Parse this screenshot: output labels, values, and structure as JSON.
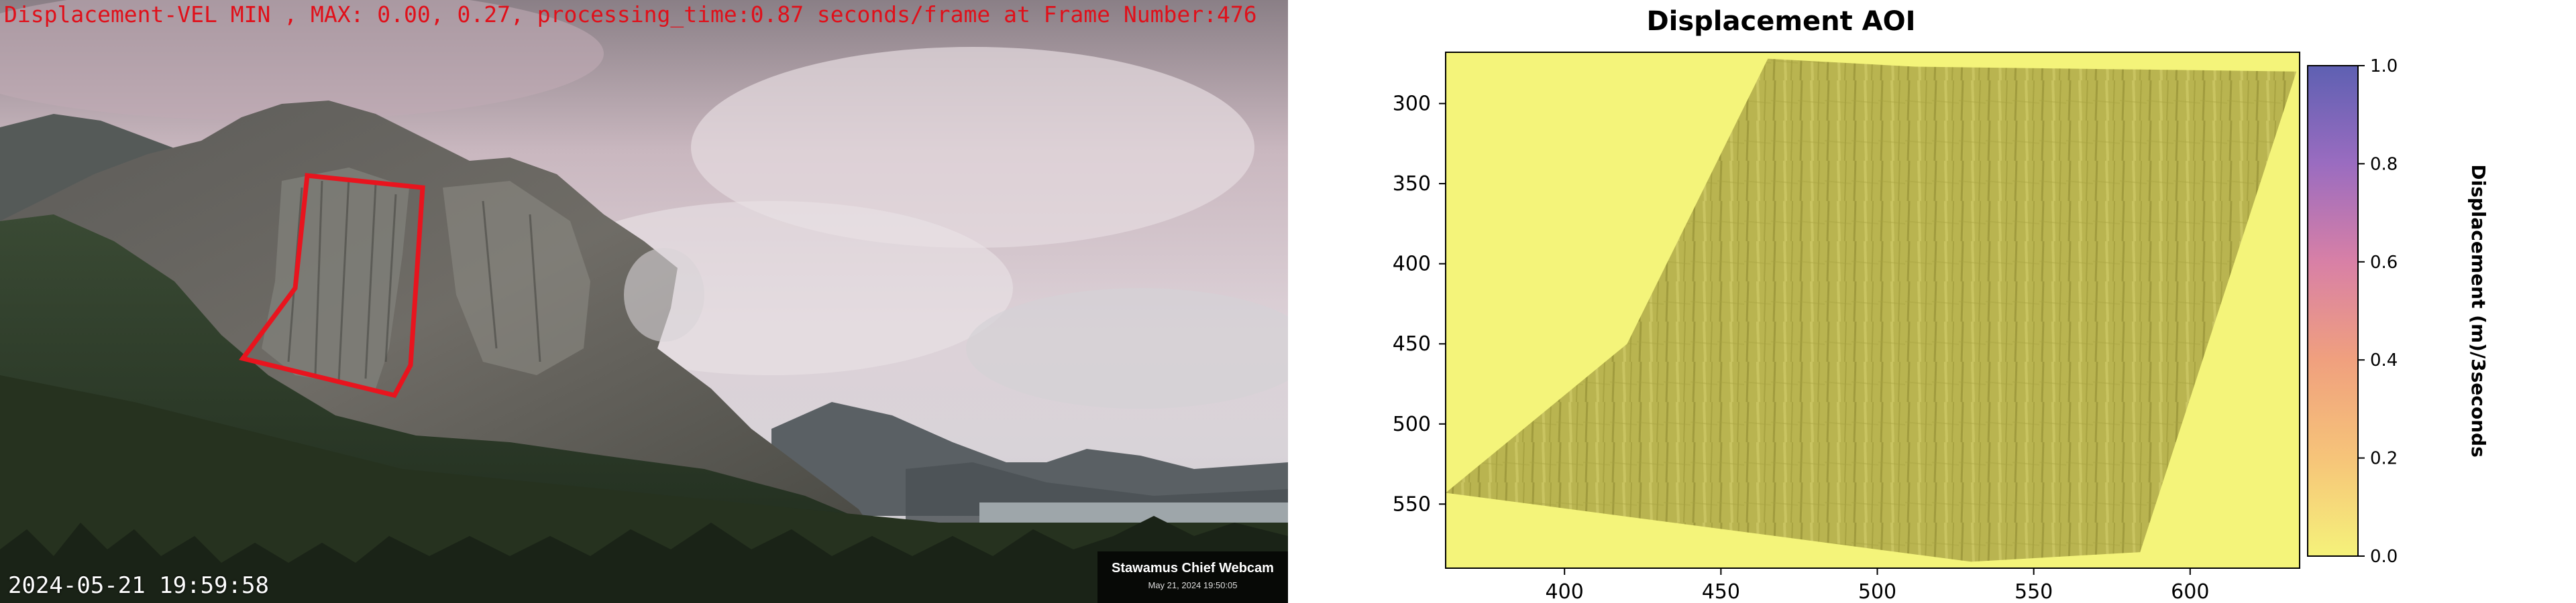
{
  "webcam": {
    "overlay_text": "Displacement-VEL MIN , MAX: 0.00, 0.27, processing_time:0.87 seconds/frame at Frame Number:476",
    "timestamp": "2024-05-21 19:59:58",
    "badge_title": "Stawamus Chief Webcam",
    "badge_subtitle": "May 21, 2024 19:50:05",
    "aoi_color": "#e8141e"
  },
  "chart_data": {
    "type": "heatmap",
    "title": "Displacement AOI",
    "xlabel": "",
    "ylabel": "",
    "xlim": [
      362,
      635
    ],
    "ylim": [
      590,
      268
    ],
    "xticks": [
      400,
      450,
      500,
      550,
      600
    ],
    "yticks": [
      300,
      350,
      400,
      450,
      500,
      550
    ],
    "colorbar": {
      "label": "Displacement (m)/3seconds",
      "range": [
        0.0,
        1.0
      ],
      "ticks": [
        0.0,
        0.2,
        0.4,
        0.6,
        0.8,
        1.0
      ],
      "colors": [
        "#f5f27a",
        "#f6c479",
        "#f0a07e",
        "#d880a6",
        "#9a6cc0",
        "#5e60b2"
      ]
    },
    "aoi_polygon": [
      [
        465,
        272
      ],
      [
        512,
        277
      ],
      [
        634,
        280
      ],
      [
        584,
        580
      ],
      [
        530,
        586
      ],
      [
        362,
        543
      ],
      [
        420,
        450
      ]
    ],
    "background_value": 0.0,
    "colors": {
      "low": "#f4f47a",
      "aoi": "#b9b450"
    }
  }
}
